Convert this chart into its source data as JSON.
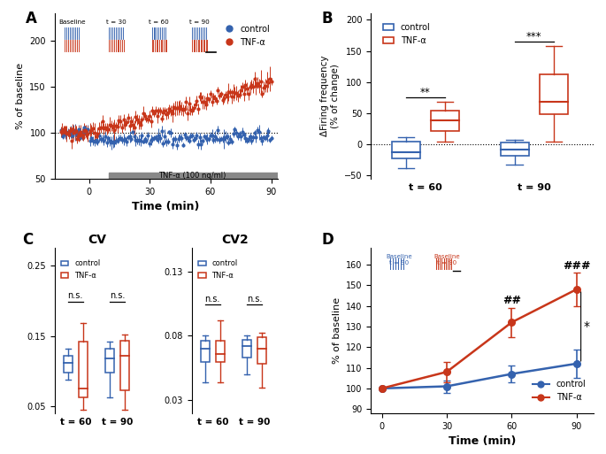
{
  "panel_A": {
    "ylim": [
      50,
      230
    ],
    "yticks": [
      50,
      100,
      150,
      200
    ],
    "ylabel": "% of baseline",
    "xlabel": "Time (min)",
    "xticks": [
      0,
      30,
      60,
      90
    ],
    "xlim": [
      -17,
      93
    ],
    "control_color": "#3462ae",
    "tnf_color": "#c8361a",
    "dashed_y": 100
  },
  "panel_B": {
    "ylim": [
      -55,
      210
    ],
    "yticks": [
      -50,
      0,
      50,
      100,
      150,
      200
    ],
    "ylabel": "ΔFiring frequency\n(% of change)",
    "control_color": "#3462ae",
    "tnf_color": "#c8361a",
    "groups": [
      "t = 60",
      "t = 90"
    ],
    "control_t60": {
      "q1": -23,
      "median": -12,
      "q3": 5,
      "whislo": -38,
      "whishi": 12
    },
    "tnf_t60": {
      "q1": 22,
      "median": 38,
      "q3": 55,
      "whislo": 5,
      "whishi": 68
    },
    "control_t90": {
      "q1": -18,
      "median": -8,
      "q3": 3,
      "whislo": -32,
      "whishi": 8
    },
    "tnf_t90": {
      "q1": 48,
      "median": 68,
      "q3": 112,
      "whislo": 5,
      "whishi": 158
    }
  },
  "panel_C_CV": {
    "title": "CV",
    "ylim": [
      0.04,
      0.275
    ],
    "yticks": [
      0.05,
      0.15,
      0.25
    ],
    "ytick_labels": [
      "0.05",
      "0.15",
      "0.25"
    ],
    "control_color": "#3462ae",
    "tnf_color": "#c8361a",
    "control_t60": {
      "q1": 0.098,
      "median": 0.112,
      "q3": 0.122,
      "whislo": 0.088,
      "whishi": 0.132
    },
    "tnf_t60": {
      "q1": 0.062,
      "median": 0.075,
      "q3": 0.142,
      "whislo": 0.045,
      "whishi": 0.168
    },
    "control_t90": {
      "q1": 0.098,
      "median": 0.118,
      "q3": 0.132,
      "whislo": 0.062,
      "whishi": 0.142
    },
    "tnf_t90": {
      "q1": 0.072,
      "median": 0.122,
      "q3": 0.143,
      "whislo": 0.045,
      "whishi": 0.152
    }
  },
  "panel_C_CV2": {
    "title": "CV2",
    "ylim": [
      0.02,
      0.148
    ],
    "yticks": [
      0.03,
      0.08,
      0.13
    ],
    "ytick_labels": [
      "0.03",
      "0.08",
      "0.13"
    ],
    "control_color": "#3462ae",
    "tnf_color": "#c8361a",
    "control_t60": {
      "q1": 0.06,
      "median": 0.07,
      "q3": 0.076,
      "whislo": 0.044,
      "whishi": 0.08
    },
    "tnf_t60": {
      "q1": 0.06,
      "median": 0.066,
      "q3": 0.076,
      "whislo": 0.044,
      "whishi": 0.092
    },
    "control_t90": {
      "q1": 0.063,
      "median": 0.072,
      "q3": 0.077,
      "whislo": 0.05,
      "whishi": 0.08
    },
    "tnf_t90": {
      "q1": 0.058,
      "median": 0.07,
      "q3": 0.079,
      "whislo": 0.04,
      "whishi": 0.082
    }
  },
  "panel_D": {
    "ylim": [
      88,
      168
    ],
    "yticks": [
      90,
      100,
      110,
      120,
      130,
      140,
      150,
      160
    ],
    "ylabel": "% of baseline",
    "xlabel": "Time (min)",
    "xticks": [
      0,
      30,
      60,
      90
    ],
    "control_color": "#3462ae",
    "tnf_color": "#c8361a",
    "control_points": [
      100,
      101,
      107,
      112
    ],
    "tnf_points": [
      100,
      108,
      132,
      148
    ],
    "control_err": [
      0,
      3,
      4,
      7
    ],
    "tnf_err": [
      0,
      5,
      7,
      8
    ],
    "xvals": [
      0,
      30,
      60,
      90
    ]
  }
}
